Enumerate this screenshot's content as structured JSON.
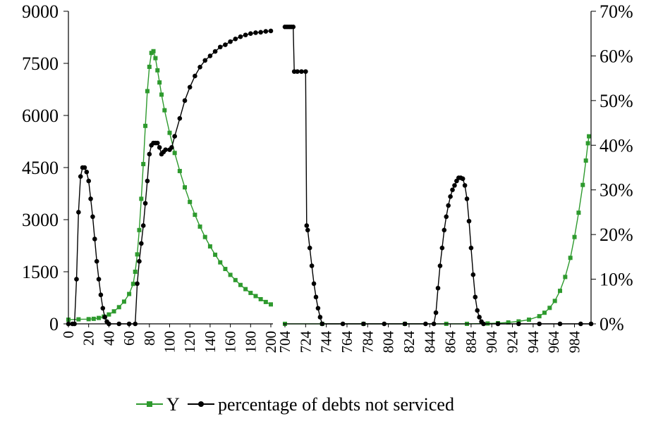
{
  "chart_data": {
    "type": "line",
    "title": "",
    "colors": {
      "Y": "#2e9a2e",
      "percentage of debts not serviced": "#000000"
    },
    "y_left": {
      "ylim": [
        0,
        9000
      ],
      "ticks": [
        "0",
        "1500",
        "3000",
        "4500",
        "6000",
        "7500",
        "9000"
      ]
    },
    "y_right": {
      "ylim": [
        0,
        0.7
      ],
      "ticks": [
        "0%",
        "10%",
        "20%",
        "30%",
        "40%",
        "50%",
        "60%",
        "70%"
      ]
    },
    "x_axis": {
      "break_between": [
        200,
        704
      ],
      "segment1": {
        "range": [
          0,
          200
        ],
        "ticks": [
          "0",
          "20",
          "40",
          "60",
          "80",
          "100",
          "120",
          "140",
          "160",
          "180",
          "200"
        ]
      },
      "segment2": {
        "range": [
          704,
          1000
        ],
        "ticks": [
          "704",
          "724",
          "744",
          "764",
          "784",
          "804",
          "824",
          "844",
          "864",
          "884",
          "904",
          "924",
          "944",
          "964",
          "984"
        ]
      }
    },
    "legend": {
      "position": "bottom",
      "entries": [
        "Y",
        "percentage of debts not serviced"
      ]
    },
    "series": [
      {
        "name": "Y",
        "axis": "left",
        "marker": "square",
        "points": [
          [
            0,
            120
          ],
          [
            10,
            130
          ],
          [
            20,
            135
          ],
          [
            25,
            145
          ],
          [
            30,
            170
          ],
          [
            35,
            210
          ],
          [
            40,
            270
          ],
          [
            45,
            360
          ],
          [
            50,
            480
          ],
          [
            55,
            640
          ],
          [
            60,
            860
          ],
          [
            64,
            1150
          ],
          [
            66,
            1500
          ],
          [
            68,
            2000
          ],
          [
            70,
            2700
          ],
          [
            72,
            3600
          ],
          [
            74,
            4600
          ],
          [
            76,
            5700
          ],
          [
            78,
            6700
          ],
          [
            80,
            7400
          ],
          [
            82,
            7800
          ],
          [
            84,
            7850
          ],
          [
            86,
            7650
          ],
          [
            88,
            7300
          ],
          [
            90,
            6950
          ],
          [
            92,
            6600
          ],
          [
            95,
            6150
          ],
          [
            100,
            5500
          ],
          [
            105,
            4920
          ],
          [
            110,
            4400
          ],
          [
            115,
            3930
          ],
          [
            120,
            3510
          ],
          [
            125,
            3140
          ],
          [
            130,
            2800
          ],
          [
            135,
            2500
          ],
          [
            140,
            2230
          ],
          [
            145,
            1990
          ],
          [
            150,
            1770
          ],
          [
            155,
            1580
          ],
          [
            160,
            1410
          ],
          [
            165,
            1260
          ],
          [
            170,
            1120
          ],
          [
            175,
            1000
          ],
          [
            180,
            890
          ],
          [
            185,
            800
          ],
          [
            190,
            710
          ],
          [
            195,
            630
          ],
          [
            200,
            560
          ],
          [
            704,
            0
          ],
          [
            740,
            0
          ],
          [
            780,
            0
          ],
          [
            820,
            0
          ],
          [
            860,
            0
          ],
          [
            880,
            0
          ],
          [
            900,
            10
          ],
          [
            910,
            20
          ],
          [
            920,
            40
          ],
          [
            930,
            70
          ],
          [
            940,
            120
          ],
          [
            950,
            220
          ],
          [
            955,
            320
          ],
          [
            960,
            460
          ],
          [
            965,
            660
          ],
          [
            970,
            950
          ],
          [
            975,
            1350
          ],
          [
            980,
            1900
          ],
          [
            984,
            2500
          ],
          [
            988,
            3200
          ],
          [
            992,
            4000
          ],
          [
            995,
            4700
          ],
          [
            997,
            5200
          ],
          [
            998,
            5400
          ]
        ]
      },
      {
        "name": "percentage of debts not serviced",
        "axis": "right",
        "marker": "circle",
        "points": [
          [
            0,
            0.0
          ],
          [
            4,
            0.0
          ],
          [
            6,
            0.0
          ],
          [
            8,
            0.1
          ],
          [
            10,
            0.25
          ],
          [
            12,
            0.33
          ],
          [
            14,
            0.35
          ],
          [
            16,
            0.35
          ],
          [
            18,
            0.34
          ],
          [
            20,
            0.32
          ],
          [
            22,
            0.28
          ],
          [
            24,
            0.24
          ],
          [
            26,
            0.19
          ],
          [
            28,
            0.14
          ],
          [
            30,
            0.1
          ],
          [
            32,
            0.065
          ],
          [
            34,
            0.035
          ],
          [
            36,
            0.015
          ],
          [
            38,
            0.005
          ],
          [
            40,
            0.0
          ],
          [
            50,
            0.0
          ],
          [
            60,
            0.0
          ],
          [
            66,
            0.0
          ],
          [
            68,
            0.09
          ],
          [
            70,
            0.14
          ],
          [
            72,
            0.18
          ],
          [
            74,
            0.22
          ],
          [
            76,
            0.27
          ],
          [
            78,
            0.32
          ],
          [
            80,
            0.38
          ],
          [
            82,
            0.4
          ],
          [
            84,
            0.405
          ],
          [
            86,
            0.405
          ],
          [
            88,
            0.405
          ],
          [
            90,
            0.395
          ],
          [
            92,
            0.38
          ],
          [
            94,
            0.385
          ],
          [
            96,
            0.39
          ],
          [
            100,
            0.39
          ],
          [
            102,
            0.395
          ],
          [
            105,
            0.42
          ],
          [
            110,
            0.46
          ],
          [
            115,
            0.5
          ],
          [
            120,
            0.53
          ],
          [
            125,
            0.555
          ],
          [
            130,
            0.575
          ],
          [
            135,
            0.59
          ],
          [
            140,
            0.6
          ],
          [
            145,
            0.61
          ],
          [
            150,
            0.62
          ],
          [
            155,
            0.625
          ],
          [
            160,
            0.632
          ],
          [
            165,
            0.638
          ],
          [
            170,
            0.643
          ],
          [
            175,
            0.647
          ],
          [
            180,
            0.65
          ],
          [
            185,
            0.652
          ],
          [
            190,
            0.653
          ],
          [
            195,
            0.655
          ],
          [
            200,
            0.656
          ],
          [
            704,
            0.665
          ],
          [
            706,
            0.665
          ],
          [
            708,
            0.665
          ],
          [
            710,
            0.665
          ],
          [
            712,
            0.665
          ],
          [
            713,
            0.565
          ],
          [
            716,
            0.565
          ],
          [
            720,
            0.565
          ],
          [
            724,
            0.565
          ],
          [
            725,
            0.22
          ],
          [
            726,
            0.21
          ],
          [
            728,
            0.17
          ],
          [
            730,
            0.13
          ],
          [
            732,
            0.09
          ],
          [
            734,
            0.06
          ],
          [
            736,
            0.035
          ],
          [
            738,
            0.015
          ],
          [
            740,
            0.0
          ],
          [
            760,
            0.0
          ],
          [
            780,
            0.0
          ],
          [
            800,
            0.0
          ],
          [
            820,
            0.0
          ],
          [
            840,
            0.0
          ],
          [
            848,
            0.0
          ],
          [
            850,
            0.025
          ],
          [
            852,
            0.08
          ],
          [
            854,
            0.13
          ],
          [
            856,
            0.17
          ],
          [
            858,
            0.21
          ],
          [
            860,
            0.24
          ],
          [
            862,
            0.265
          ],
          [
            864,
            0.285
          ],
          [
            866,
            0.3
          ],
          [
            868,
            0.31
          ],
          [
            870,
            0.32
          ],
          [
            872,
            0.327
          ],
          [
            874,
            0.327
          ],
          [
            876,
            0.325
          ],
          [
            878,
            0.31
          ],
          [
            880,
            0.28
          ],
          [
            882,
            0.23
          ],
          [
            884,
            0.17
          ],
          [
            886,
            0.11
          ],
          [
            888,
            0.06
          ],
          [
            890,
            0.03
          ],
          [
            892,
            0.015
          ],
          [
            894,
            0.005
          ],
          [
            896,
            0.0
          ],
          [
            910,
            0.0
          ],
          [
            930,
            0.0
          ],
          [
            950,
            0.0
          ],
          [
            970,
            0.0
          ],
          [
            990,
            0.0
          ],
          [
            1000,
            0.0
          ]
        ]
      }
    ]
  }
}
